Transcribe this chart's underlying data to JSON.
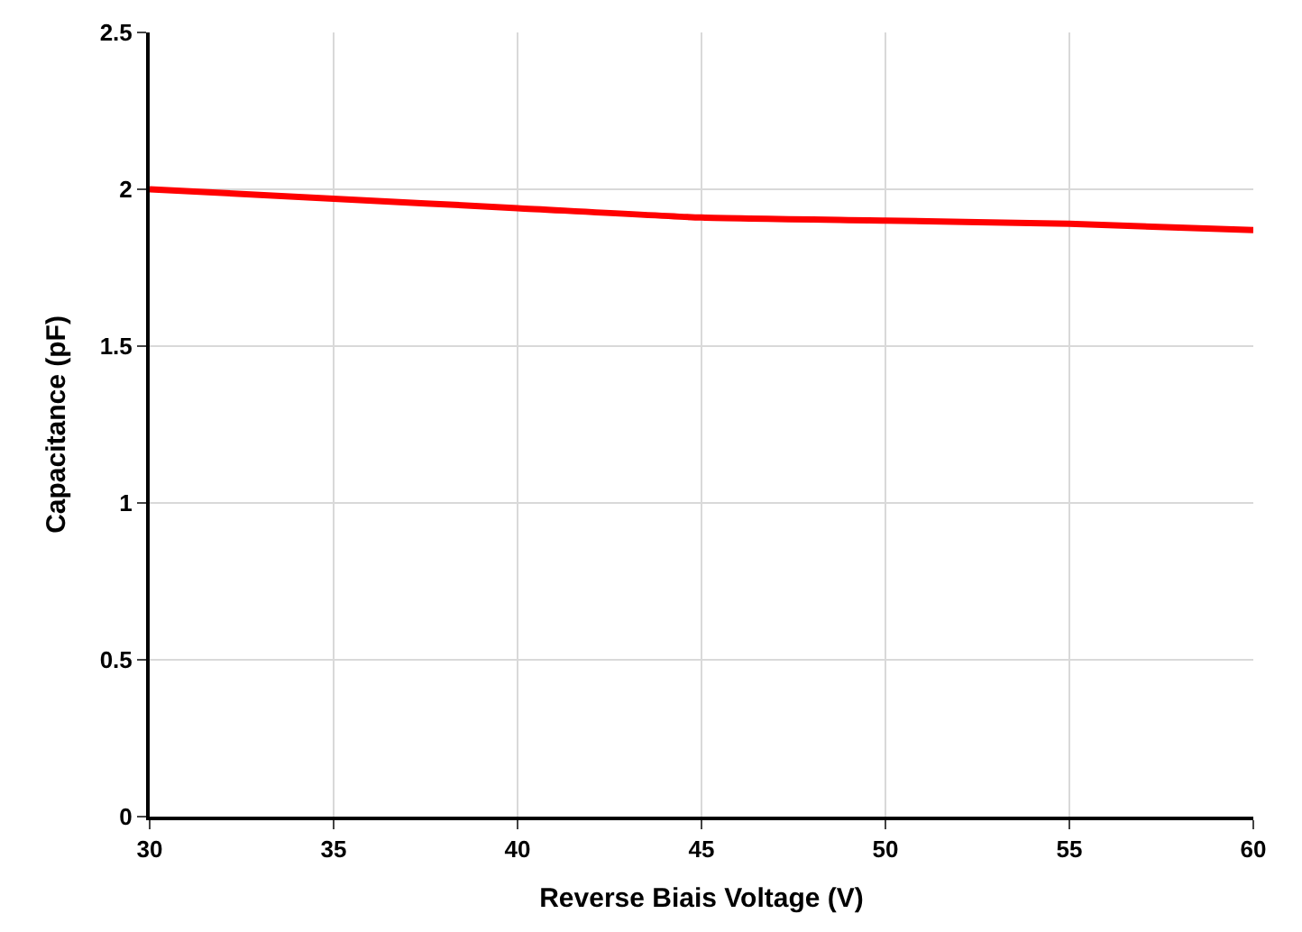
{
  "chart_data": {
    "type": "line",
    "xlabel": "Reverse Biais Voltage (V)",
    "ylabel": "Capacitance (pF)",
    "x": [
      30,
      35,
      40,
      45,
      50,
      55,
      60
    ],
    "series": [
      {
        "color": "#ff0000",
        "values": [
          2.0,
          1.97,
          1.94,
          1.91,
          1.9,
          1.89,
          1.87
        ]
      }
    ],
    "xlim": [
      30,
      60
    ],
    "xticks": [
      30,
      35,
      40,
      45,
      50,
      55,
      60
    ],
    "ylim": [
      0,
      2.5
    ],
    "yticks": [
      0,
      0.5,
      1,
      1.5,
      2,
      2.5
    ],
    "grid": true,
    "marker": "none",
    "line_style": "solid"
  }
}
